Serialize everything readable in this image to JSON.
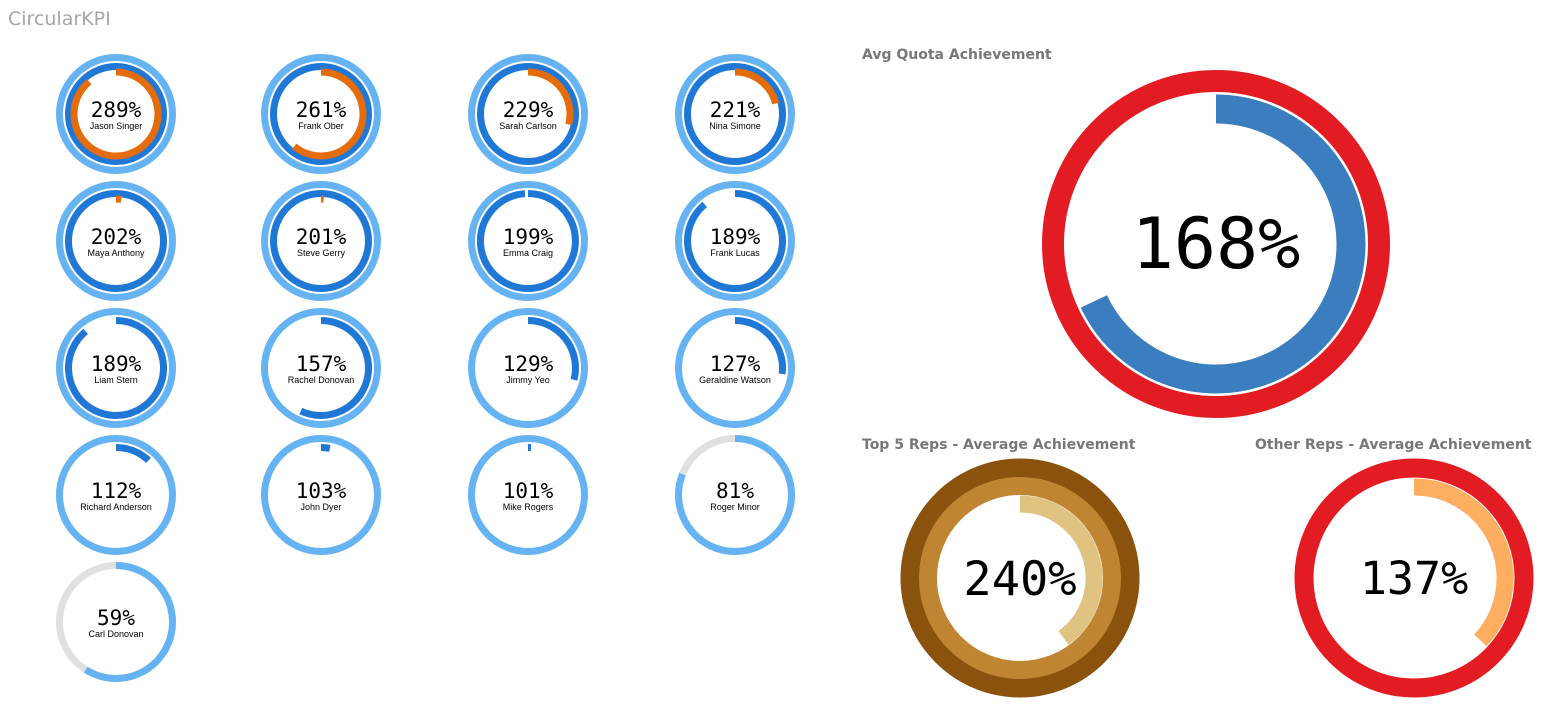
{
  "page_title": "CircularKPI",
  "chart_data": [
    {
      "type": "radial",
      "title": "",
      "reps": [
        {
          "name": "Jason Singer",
          "label": "289%",
          "value": 289
        },
        {
          "name": "Frank Ober",
          "label": "261%",
          "value": 261
        },
        {
          "name": "Sarah Carlson",
          "label": "229%",
          "value": 229
        },
        {
          "name": "Nina Simone",
          "label": "221%",
          "value": 221
        },
        {
          "name": "Maya Anthony",
          "label": "202%",
          "value": 202
        },
        {
          "name": "Steve Gerry",
          "label": "201%",
          "value": 201
        },
        {
          "name": "Emma Craig",
          "label": "199%",
          "value": 199
        },
        {
          "name": "Frank Lucas",
          "label": "189%",
          "value": 189
        },
        {
          "name": "Liam Stern",
          "label": "189%",
          "value": 189
        },
        {
          "name": "Rachel Donovan",
          "label": "157%",
          "value": 157
        },
        {
          "name": "Jimmy Yeo",
          "label": "129%",
          "value": 129
        },
        {
          "name": "Geraldine Watson",
          "label": "127%",
          "value": 127
        },
        {
          "name": "Richard Anderson",
          "label": "112%",
          "value": 112
        },
        {
          "name": "John Dyer",
          "label": "103%",
          "value": 103
        },
        {
          "name": "Mike Rogers",
          "label": "101%",
          "value": 101
        },
        {
          "name": "Roger Minor",
          "label": "81%",
          "value": 81
        },
        {
          "name": "Carl Donovan",
          "label": "59%",
          "value": 59
        }
      ],
      "colors": {
        "ring1": "#65b3f3",
        "ring2": "#1f77d6",
        "ring3": "#e46c0a",
        "empty": "#e0e0e0"
      }
    },
    {
      "type": "radial",
      "title": "Avg Quota Achievement",
      "label": "168%",
      "value": 168,
      "colors": {
        "ring1": "#e31b23",
        "ring2": "#3a7ebf"
      }
    },
    {
      "type": "radial",
      "title": "Top 5 Reps - Average Achievement",
      "label": "240%",
      "value": 240,
      "colors": {
        "ring1": "#8b520e",
        "ring2": "#c08533",
        "ring3": "#e1c381"
      }
    },
    {
      "type": "radial",
      "title": "Other Reps - Average Achievement",
      "label": "137%",
      "value": 137,
      "colors": {
        "ring1": "#e31b23",
        "ring2": "#fdae61"
      }
    }
  ]
}
